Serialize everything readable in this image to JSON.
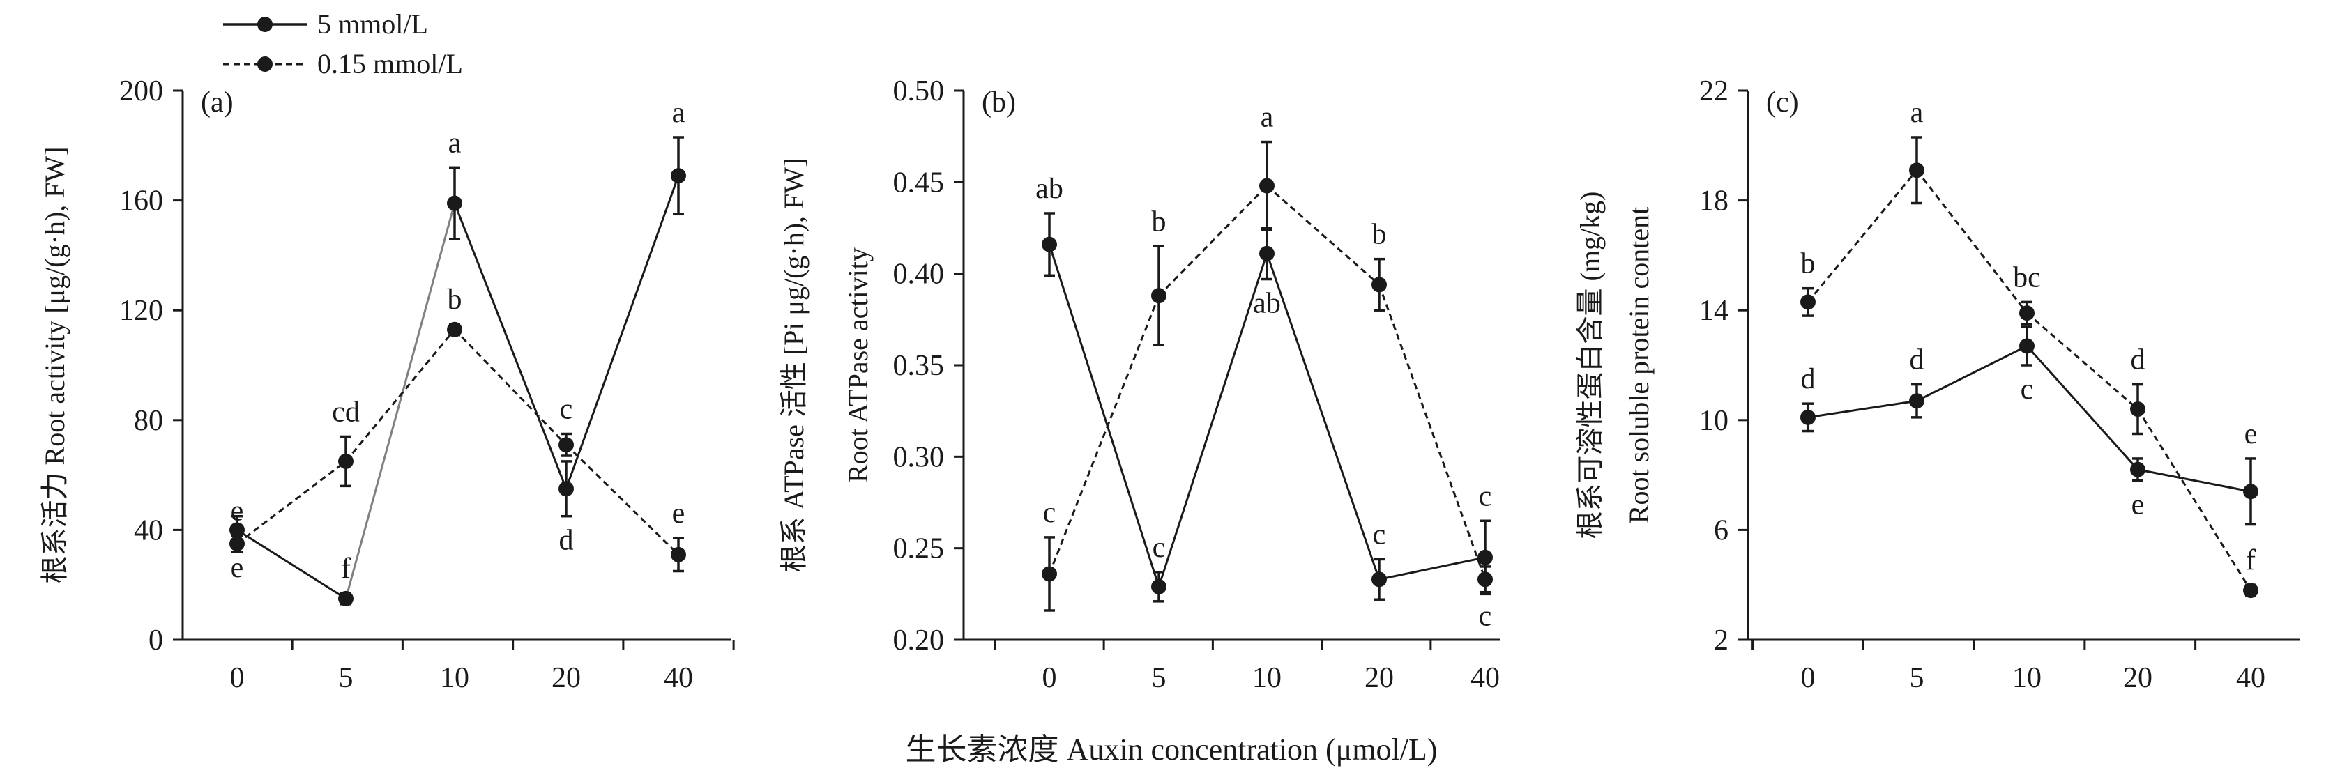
{
  "legend": {
    "items": [
      {
        "label": "5 mmol/L",
        "style": "solid"
      },
      {
        "label": "0.15 mmol/L",
        "style": "dashed"
      }
    ]
  },
  "xlabel": "生长素浓度 Auxin concentration (μmol/L)",
  "colors": {
    "ink": "#1a1a1a",
    "segment_highlight": "#808080"
  },
  "chart_data": [
    {
      "type": "line",
      "panel_label": "(a)",
      "categories": [
        "0",
        "5",
        "10",
        "20",
        "40"
      ],
      "ylabel": [
        "根系活力 Root activity [μg/(g·h), FW]"
      ],
      "ylim": [
        0,
        200
      ],
      "yticks": [
        "0",
        "40",
        "80",
        "120",
        "160",
        "200"
      ],
      "series": [
        {
          "name": "5 mmol/L",
          "style": "solid",
          "values": [
            40,
            15,
            159,
            55,
            169
          ],
          "errors": [
            5,
            2,
            13,
            10,
            14
          ],
          "letters": [
            "e",
            "f",
            "a",
            "d",
            "a"
          ],
          "letter_pos": [
            "below",
            "above",
            "above",
            "below",
            "above"
          ]
        },
        {
          "name": "0.15 mmol/L",
          "style": "dashed",
          "values": [
            35,
            65,
            113,
            71,
            31
          ],
          "errors": [
            3,
            9,
            2,
            4,
            6
          ],
          "letters": [
            "e",
            "cd",
            "b",
            "c",
            "e"
          ],
          "letter_pos": [
            "above",
            "above",
            "above",
            "above",
            "above"
          ]
        }
      ]
    },
    {
      "type": "line",
      "panel_label": "(b)",
      "categories": [
        "0",
        "5",
        "10",
        "20",
        "40"
      ],
      "ylabel": [
        "根系 ATPase 活性 [Pi μg/(g·h), FW]",
        "Root ATPase activity"
      ],
      "ylim": [
        0.2,
        0.5
      ],
      "yticks": [
        "0.20",
        "0.25",
        "0.30",
        "0.35",
        "0.40",
        "0.45",
        "0.50"
      ],
      "series": [
        {
          "name": "5 mmol/L",
          "style": "solid",
          "values": [
            0.416,
            0.229,
            0.411,
            0.233,
            0.245
          ],
          "errors": [
            0.017,
            0.008,
            0.014,
            0.011,
            0.02
          ],
          "letters": [
            "ab",
            "c",
            "ab",
            "c",
            "c"
          ],
          "letter_pos": [
            "above",
            "above",
            "below",
            "above",
            "above"
          ]
        },
        {
          "name": "0.15 mmol/L",
          "style": "dashed",
          "values": [
            0.236,
            0.388,
            0.448,
            0.394,
            0.233
          ],
          "errors": [
            0.02,
            0.027,
            0.024,
            0.014,
            0.007
          ],
          "letters": [
            "c",
            "b",
            "a",
            "b",
            "c"
          ],
          "letter_pos": [
            "above",
            "above",
            "above",
            "above",
            "below"
          ]
        }
      ]
    },
    {
      "type": "line",
      "panel_label": "(c)",
      "categories": [
        "0",
        "5",
        "10",
        "20",
        "40"
      ],
      "ylabel": [
        "根系可溶性蛋白含量 (mg/kg)",
        "Root soluble protein content"
      ],
      "ylim": [
        2,
        22
      ],
      "yticks": [
        "2",
        "6",
        "10",
        "14",
        "18",
        "22"
      ],
      "series": [
        {
          "name": "5 mmol/L",
          "style": "solid",
          "values": [
            10.1,
            10.7,
            12.7,
            8.2,
            7.4
          ],
          "errors": [
            0.5,
            0.6,
            0.7,
            0.4,
            1.2
          ],
          "letters": [
            "d",
            "d",
            "c",
            "e",
            "e"
          ],
          "letter_pos": [
            "above",
            "above",
            "below",
            "below",
            "above"
          ]
        },
        {
          "name": "0.15 mmol/L",
          "style": "dashed",
          "values": [
            14.3,
            19.1,
            13.9,
            10.4,
            3.8
          ],
          "errors": [
            0.5,
            1.2,
            0.4,
            0.9,
            0.2
          ],
          "letters": [
            "b",
            "a",
            "bc",
            "d",
            "f"
          ],
          "letter_pos": [
            "above",
            "above",
            "above",
            "above",
            "above"
          ]
        }
      ]
    }
  ]
}
